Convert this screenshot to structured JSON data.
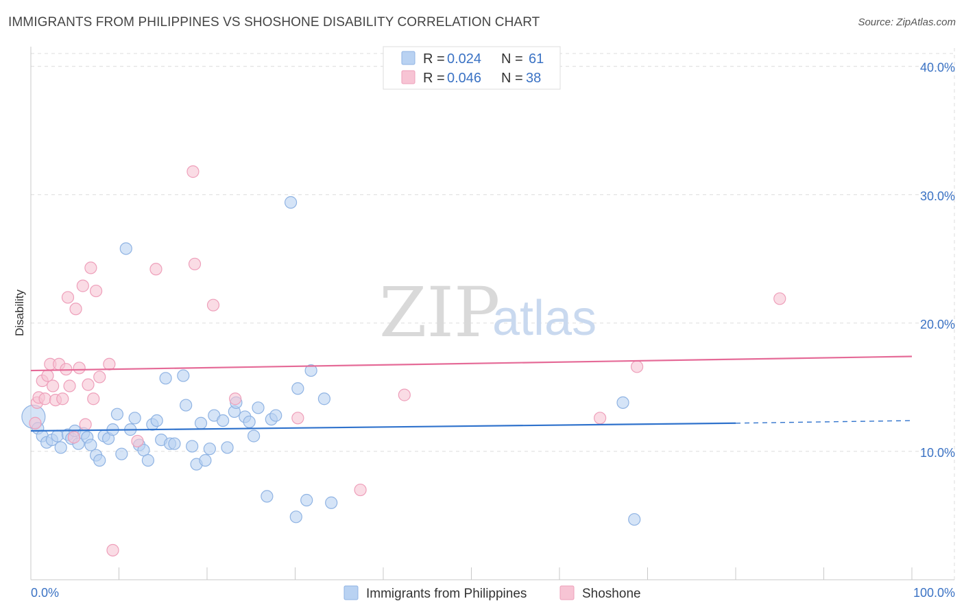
{
  "header": {
    "title": "IMMIGRANTS FROM PHILIPPINES VS SHOSHONE DISABILITY CORRELATION CHART",
    "source": "Source: ZipAtlas.com"
  },
  "watermark": {
    "zip": "ZIP",
    "atlas": "atlas"
  },
  "legend": {
    "rows": [
      {
        "r_label": "R = ",
        "r_value": "0.024",
        "n_label": "N = ",
        "n_value": "61"
      },
      {
        "r_label": "R = ",
        "r_value": "0.046",
        "n_label": "N = ",
        "n_value": "38"
      }
    ]
  },
  "bottom_legend": [
    {
      "label": "Immigrants from Philippines"
    },
    {
      "label": "Shoshone"
    }
  ],
  "chart_data": {
    "type": "scatter",
    "ylabel": "Disability",
    "x_tick_labels": [
      "0.0%",
      "100.0%"
    ],
    "y_tick_labels": [
      "10.0%",
      "20.0%",
      "30.0%",
      "40.0%"
    ],
    "y_ticks": [
      10,
      20,
      30,
      40
    ],
    "xlim": [
      0,
      100
    ],
    "ylim": [
      0,
      41
    ],
    "grid": true,
    "colors": {
      "blue_fill": "#b9d2f2",
      "blue_stroke": "#8fb3e3",
      "blue_line": "#2f72cc",
      "pink_fill": "#f7c4d4",
      "pink_stroke": "#ee9fba",
      "pink_line": "#e56a97",
      "label_blue": "#3a72c4"
    },
    "series": [
      {
        "name": "Immigrants from Philippines",
        "color": "#b9d2f2",
        "trend": {
          "x": [
            0,
            80
          ],
          "y": [
            11.6,
            12.2
          ],
          "dashed_x": [
            80,
            100
          ],
          "dashed_y": [
            12.2,
            12.4
          ]
        },
        "points": [
          [
            0.3,
            12.7
          ],
          [
            0.8,
            11.8
          ],
          [
            1.3,
            11.2
          ],
          [
            1.8,
            10.7
          ],
          [
            2.4,
            10.9
          ],
          [
            3.0,
            11.2
          ],
          [
            3.4,
            10.3
          ],
          [
            4.2,
            11.3
          ],
          [
            4.6,
            11.0
          ],
          [
            5.0,
            11.6
          ],
          [
            5.4,
            10.6
          ],
          [
            6.0,
            11.4
          ],
          [
            6.4,
            11.1
          ],
          [
            6.8,
            10.5
          ],
          [
            7.4,
            9.7
          ],
          [
            7.8,
            9.3
          ],
          [
            8.3,
            11.2
          ],
          [
            8.8,
            11.0
          ],
          [
            9.3,
            11.7
          ],
          [
            9.8,
            12.9
          ],
          [
            10.3,
            9.8
          ],
          [
            10.8,
            25.8
          ],
          [
            11.3,
            11.7
          ],
          [
            11.8,
            12.6
          ],
          [
            12.3,
            10.5
          ],
          [
            12.8,
            10.1
          ],
          [
            13.3,
            9.3
          ],
          [
            13.8,
            12.1
          ],
          [
            14.3,
            12.4
          ],
          [
            14.8,
            10.9
          ],
          [
            15.3,
            15.7
          ],
          [
            15.8,
            10.6
          ],
          [
            16.3,
            10.6
          ],
          [
            17.3,
            15.9
          ],
          [
            17.6,
            13.6
          ],
          [
            18.3,
            10.4
          ],
          [
            18.8,
            9.0
          ],
          [
            19.3,
            12.2
          ],
          [
            19.8,
            9.3
          ],
          [
            20.3,
            10.2
          ],
          [
            20.8,
            12.8
          ],
          [
            21.8,
            12.4
          ],
          [
            22.3,
            10.3
          ],
          [
            23.1,
            13.1
          ],
          [
            23.3,
            13.8
          ],
          [
            24.3,
            12.7
          ],
          [
            24.8,
            12.3
          ],
          [
            25.3,
            11.2
          ],
          [
            25.8,
            13.4
          ],
          [
            26.8,
            6.5
          ],
          [
            27.3,
            12.5
          ],
          [
            27.8,
            12.8
          ],
          [
            29.5,
            29.4
          ],
          [
            30.1,
            4.9
          ],
          [
            30.3,
            14.9
          ],
          [
            31.3,
            6.2
          ],
          [
            31.8,
            16.3
          ],
          [
            33.3,
            14.1
          ],
          [
            34.1,
            6.0
          ],
          [
            68.5,
            4.7
          ],
          [
            67.2,
            13.8
          ]
        ]
      },
      {
        "name": "Shoshone",
        "color": "#f7c4d4",
        "trend": {
          "x": [
            0,
            100
          ],
          "y": [
            16.3,
            17.4
          ]
        },
        "points": [
          [
            0.5,
            12.2
          ],
          [
            0.7,
            13.8
          ],
          [
            0.9,
            14.2
          ],
          [
            1.3,
            15.5
          ],
          [
            1.6,
            14.1
          ],
          [
            1.9,
            15.9
          ],
          [
            2.2,
            16.8
          ],
          [
            2.5,
            15.1
          ],
          [
            2.8,
            14.0
          ],
          [
            3.2,
            16.8
          ],
          [
            3.6,
            14.1
          ],
          [
            4.0,
            16.4
          ],
          [
            4.2,
            22.0
          ],
          [
            4.4,
            15.1
          ],
          [
            4.9,
            11.1
          ],
          [
            5.1,
            21.1
          ],
          [
            5.5,
            16.5
          ],
          [
            5.9,
            22.9
          ],
          [
            6.2,
            12.1
          ],
          [
            6.5,
            15.2
          ],
          [
            6.8,
            24.3
          ],
          [
            7.1,
            14.1
          ],
          [
            7.4,
            22.5
          ],
          [
            7.8,
            15.8
          ],
          [
            8.9,
            16.8
          ],
          [
            9.3,
            2.3
          ],
          [
            12.1,
            10.8
          ],
          [
            14.2,
            24.2
          ],
          [
            18.4,
            31.8
          ],
          [
            18.6,
            24.6
          ],
          [
            20.7,
            21.4
          ],
          [
            23.2,
            14.1
          ],
          [
            30.3,
            12.6
          ],
          [
            37.4,
            7.0
          ],
          [
            42.4,
            14.4
          ],
          [
            64.6,
            12.6
          ],
          [
            68.8,
            16.6
          ],
          [
            85.0,
            21.9
          ]
        ]
      }
    ]
  }
}
